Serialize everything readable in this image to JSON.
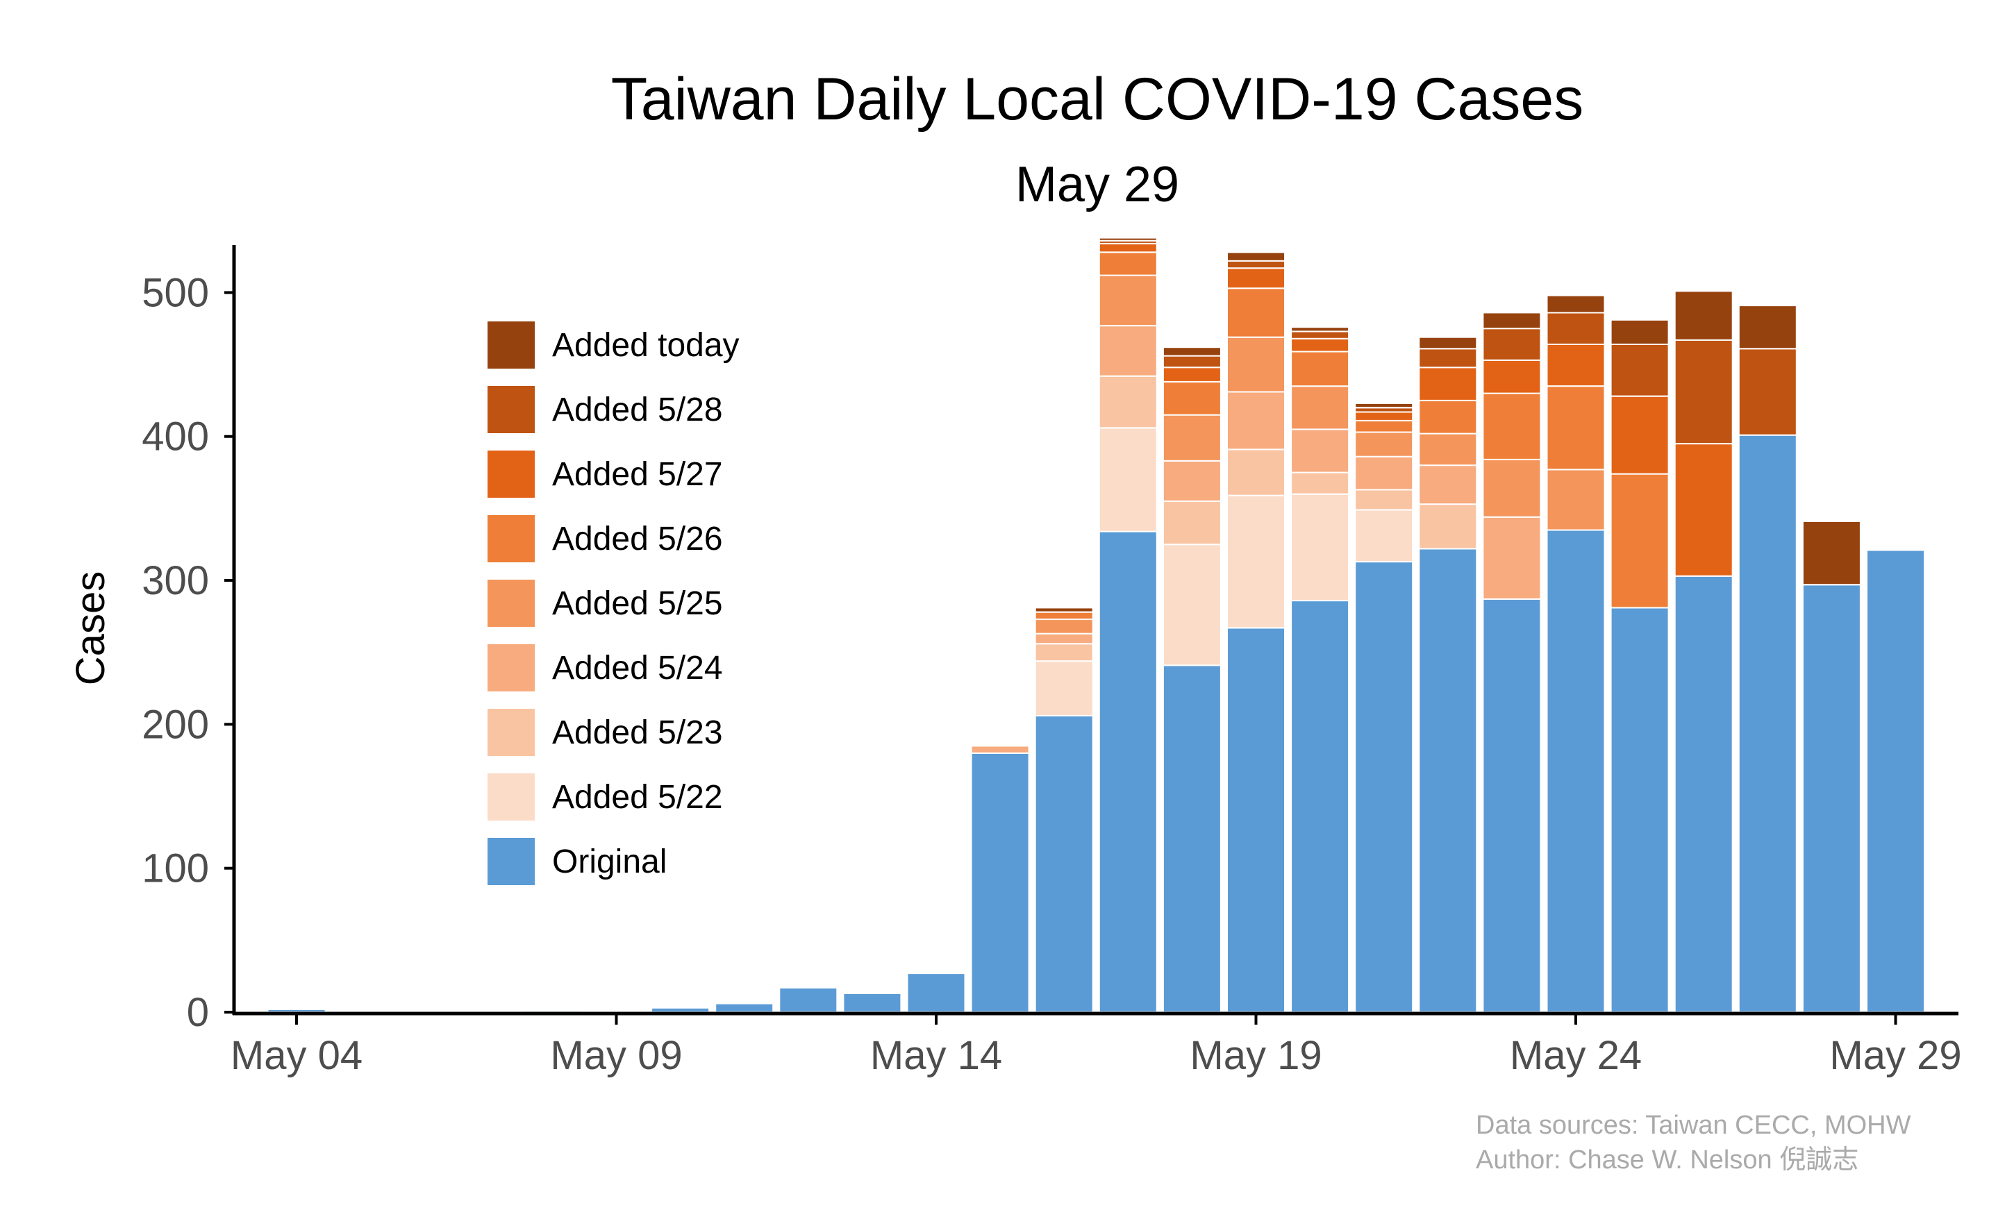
{
  "chart_data": {
    "type": "bar",
    "stacked": true,
    "title": "Taiwan Daily Local COVID-19 Cases",
    "subtitle": "May 29",
    "ylabel": "Cases",
    "ylim": [
      0,
      533
    ],
    "yticks": [
      0,
      100,
      200,
      300,
      400,
      500
    ],
    "xticks": [
      "May 04",
      "May 09",
      "May 14",
      "May 19",
      "May 24",
      "May 29"
    ],
    "xtick_positions": [
      "2021-05-04",
      "2021-05-09",
      "2021-05-14",
      "2021-05-19",
      "2021-05-24",
      "2021-05-29"
    ],
    "categories": [
      "2021-05-04",
      "2021-05-05",
      "2021-05-06",
      "2021-05-07",
      "2021-05-08",
      "2021-05-09",
      "2021-05-10",
      "2021-05-11",
      "2021-05-12",
      "2021-05-13",
      "2021-05-14",
      "2021-05-15",
      "2021-05-16",
      "2021-05-17",
      "2021-05-18",
      "2021-05-19",
      "2021-05-20",
      "2021-05-21",
      "2021-05-22",
      "2021-05-23",
      "2021-05-24",
      "2021-05-25",
      "2021-05-26",
      "2021-05-27",
      "2021-05-28",
      "2021-05-29"
    ],
    "series": [
      {
        "name": "Original",
        "color": "#5b9bd5",
        "values": [
          2,
          0,
          0,
          0,
          1,
          0,
          3,
          6,
          17,
          13,
          27,
          180,
          206,
          334,
          241,
          267,
          286,
          313,
          322,
          287,
          335,
          281,
          303,
          401,
          297,
          321
        ]
      },
      {
        "name": "Added 5/22",
        "color": "#fbdcc8",
        "values": [
          0,
          0,
          0,
          0,
          0,
          0,
          0,
          0,
          0,
          0,
          0,
          0,
          38,
          72,
          84,
          92,
          74,
          36,
          0,
          0,
          0,
          0,
          0,
          0,
          0,
          0
        ]
      },
      {
        "name": "Added 5/23",
        "color": "#f9c4a2",
        "values": [
          0,
          0,
          0,
          0,
          0,
          0,
          0,
          0,
          0,
          0,
          0,
          0,
          12,
          36,
          30,
          32,
          15,
          14,
          31,
          0,
          0,
          0,
          0,
          0,
          0,
          0
        ]
      },
      {
        "name": "Added 5/24",
        "color": "#f7ab7e",
        "values": [
          0,
          0,
          0,
          0,
          0,
          0,
          0,
          0,
          0,
          0,
          1,
          5,
          7,
          35,
          28,
          40,
          30,
          23,
          27,
          57,
          0,
          0,
          0,
          0,
          0,
          0
        ]
      },
      {
        "name": "Added 5/25",
        "color": "#f4955c",
        "values": [
          0,
          0,
          0,
          0,
          0,
          0,
          0,
          0,
          0,
          0,
          0,
          0,
          10,
          35,
          32,
          38,
          30,
          17,
          22,
          40,
          42,
          0,
          0,
          0,
          0,
          0
        ]
      },
      {
        "name": "Added 5/26",
        "color": "#ef7f38",
        "values": [
          0,
          0,
          0,
          0,
          0,
          0,
          0,
          0,
          0,
          0,
          0,
          0,
          5,
          16,
          23,
          34,
          24,
          8,
          23,
          46,
          58,
          93,
          0,
          0,
          0,
          0
        ]
      },
      {
        "name": "Added 5/27",
        "color": "#e36316",
        "values": [
          0,
          0,
          0,
          0,
          0,
          0,
          0,
          0,
          0,
          0,
          0,
          0,
          0,
          6,
          10,
          14,
          9,
          6,
          23,
          23,
          29,
          54,
          92,
          0,
          0,
          0
        ]
      },
      {
        "name": "Added 5/28",
        "color": "#bf5312",
        "values": [
          0,
          0,
          0,
          0,
          0,
          0,
          0,
          0,
          0,
          0,
          0,
          0,
          0,
          2,
          8,
          5,
          5,
          3,
          13,
          22,
          22,
          36,
          72,
          60,
          0,
          0
        ]
      },
      {
        "name": "Added today",
        "color": "#96420e",
        "values": [
          0,
          0,
          0,
          0,
          0,
          0,
          0,
          0,
          0,
          0,
          0,
          0,
          3,
          2,
          6,
          6,
          3,
          3,
          8,
          11,
          12,
          17,
          34,
          30,
          44,
          0
        ]
      }
    ],
    "legend": {
      "placement": "inside-left",
      "items": [
        "Added today",
        "Added 5/28",
        "Added 5/27",
        "Added 5/26",
        "Added 5/25",
        "Added 5/24",
        "Added 5/23",
        "Added 5/22",
        "Original"
      ]
    },
    "grid": false,
    "caption": {
      "line1": "Data sources: Taiwan CECC, MOHW",
      "line2": "Author: Chase W. Nelson 倪誠志"
    }
  }
}
